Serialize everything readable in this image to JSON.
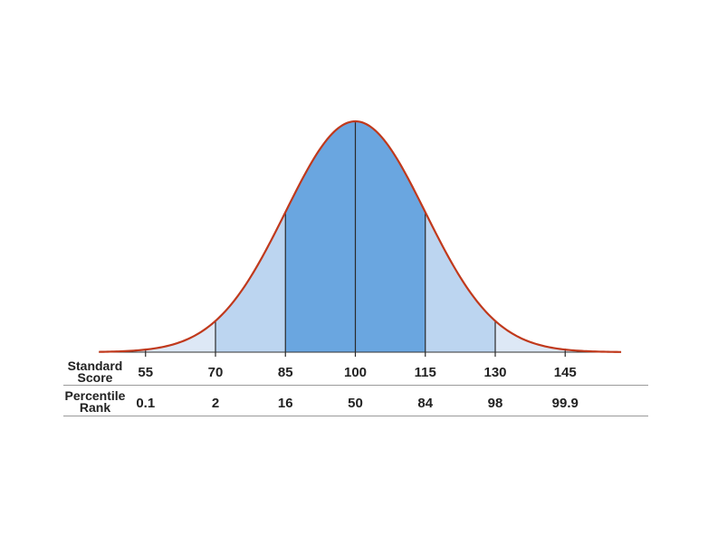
{
  "chart_data": {
    "type": "area",
    "title": "",
    "mean": 100,
    "sd": 15,
    "xlim": [
      45,
      157
    ],
    "regions": [
      {
        "from": 45,
        "to": 70,
        "color": "#dde8f6"
      },
      {
        "from": 70,
        "to": 85,
        "color": "#bcd5f0"
      },
      {
        "from": 85,
        "to": 115,
        "color": "#6aa6e0"
      },
      {
        "from": 115,
        "to": 130,
        "color": "#bcd5f0"
      },
      {
        "from": 130,
        "to": 157,
        "color": "#dde8f6"
      }
    ],
    "curve_color": "#c0391c",
    "rows": {
      "standard_score_label": [
        "Standard",
        "Score"
      ],
      "percentile_rank_label": [
        "Percentile",
        "Rank"
      ]
    },
    "ticks": [
      {
        "score": 55,
        "score_label": "55",
        "percentile": "0.1"
      },
      {
        "score": 70,
        "score_label": "70",
        "percentile": "2"
      },
      {
        "score": 85,
        "score_label": "85",
        "percentile": "16"
      },
      {
        "score": 100,
        "score_label": "100",
        "percentile": "50"
      },
      {
        "score": 115,
        "score_label": "115",
        "percentile": "84"
      },
      {
        "score": 130,
        "score_label": "130",
        "percentile": "98"
      },
      {
        "score": 145,
        "score_label": "145",
        "percentile": "99.9"
      }
    ]
  }
}
